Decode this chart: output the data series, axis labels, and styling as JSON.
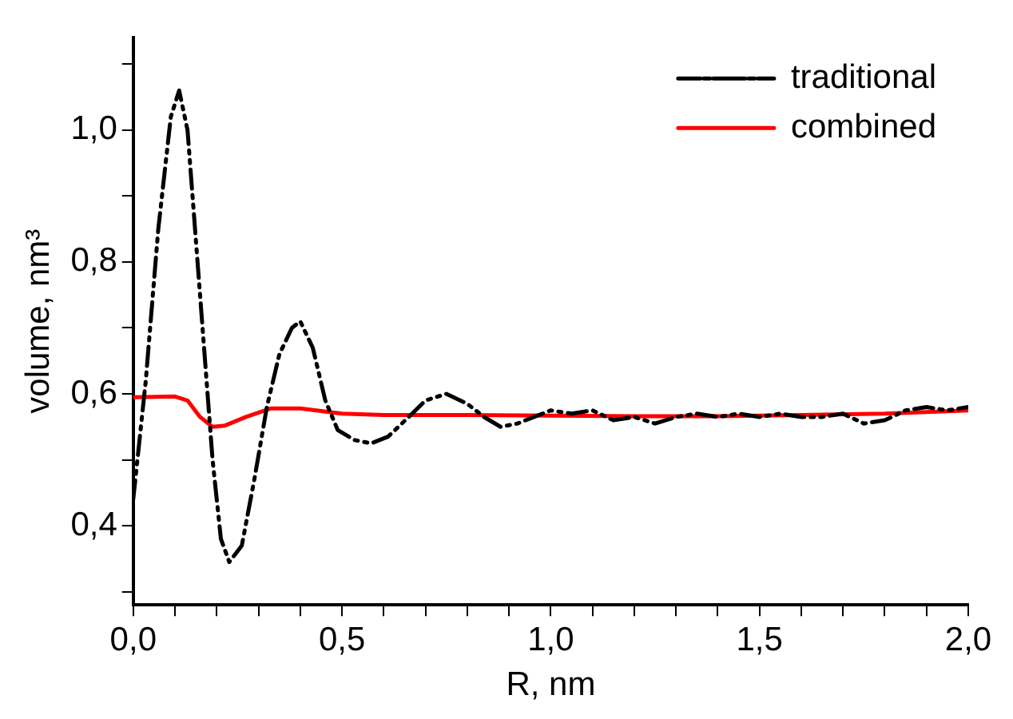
{
  "chart_data": {
    "type": "line",
    "xlabel": "R, nm",
    "ylabel": "volume, nm³",
    "xlim": [
      0,
      2.0
    ],
    "ylim": [
      0.28,
      1.14
    ],
    "xticks": [
      {
        "value": 0,
        "label": "0,0"
      },
      {
        "value": 0.1,
        "label": null
      },
      {
        "value": 0.2,
        "label": null
      },
      {
        "value": 0.3,
        "label": null
      },
      {
        "value": 0.4,
        "label": null
      },
      {
        "value": 0.5,
        "label": "0,5"
      },
      {
        "value": 0.6,
        "label": null
      },
      {
        "value": 0.7,
        "label": null
      },
      {
        "value": 0.8,
        "label": null
      },
      {
        "value": 0.9,
        "label": null
      },
      {
        "value": 1.0,
        "label": "1,0"
      },
      {
        "value": 1.1,
        "label": null
      },
      {
        "value": 1.2,
        "label": null
      },
      {
        "value": 1.3,
        "label": null
      },
      {
        "value": 1.4,
        "label": null
      },
      {
        "value": 1.5,
        "label": "1,5"
      },
      {
        "value": 1.6,
        "label": null
      },
      {
        "value": 1.7,
        "label": null
      },
      {
        "value": 1.8,
        "label": null
      },
      {
        "value": 1.9,
        "label": null
      },
      {
        "value": 2.0,
        "label": "2,0"
      }
    ],
    "yticks": [
      {
        "value": 0.3,
        "label": null
      },
      {
        "value": 0.4,
        "label": "0,4"
      },
      {
        "value": 0.5,
        "label": null
      },
      {
        "value": 0.6,
        "label": "0,6"
      },
      {
        "value": 0.7,
        "label": null
      },
      {
        "value": 0.8,
        "label": "0,8"
      },
      {
        "value": 0.9,
        "label": null
      },
      {
        "value": 1.0,
        "label": "1,0"
      },
      {
        "value": 1.1,
        "label": null
      }
    ],
    "grid": false,
    "legend": "top right",
    "marker": "none",
    "series": [
      {
        "name": "traditional",
        "color": "#000000",
        "line_style": "dashed",
        "x": [
          0,
          0.03,
          0.06,
          0.09,
          0.11,
          0.13,
          0.16,
          0.19,
          0.21,
          0.23,
          0.26,
          0.29,
          0.32,
          0.35,
          0.38,
          0.4,
          0.43,
          0.46,
          0.49,
          0.53,
          0.57,
          0.61,
          0.66,
          0.7,
          0.75,
          0.8,
          0.84,
          0.88,
          0.92,
          0.96,
          1.0,
          1.05,
          1.1,
          1.15,
          1.2,
          1.25,
          1.3,
          1.35,
          1.4,
          1.45,
          1.5,
          1.55,
          1.6,
          1.65,
          1.7,
          1.75,
          1.8,
          1.85,
          1.9,
          1.95,
          2.0
        ],
        "values": [
          0.44,
          0.62,
          0.85,
          1.02,
          1.06,
          1.0,
          0.75,
          0.5,
          0.38,
          0.345,
          0.37,
          0.47,
          0.58,
          0.66,
          0.7,
          0.71,
          0.67,
          0.59,
          0.545,
          0.53,
          0.525,
          0.535,
          0.565,
          0.59,
          0.6,
          0.585,
          0.565,
          0.55,
          0.555,
          0.565,
          0.575,
          0.57,
          0.575,
          0.56,
          0.565,
          0.555,
          0.565,
          0.57,
          0.565,
          0.57,
          0.565,
          0.57,
          0.565,
          0.565,
          0.57,
          0.555,
          0.56,
          0.575,
          0.58,
          0.575,
          0.58
        ]
      },
      {
        "name": "combined",
        "color": "#ff0000",
        "line_style": "solid",
        "x": [
          0,
          0.1,
          0.13,
          0.16,
          0.19,
          0.22,
          0.27,
          0.33,
          0.4,
          0.5,
          0.6,
          0.8,
          1.0,
          1.2,
          1.4,
          1.6,
          1.8,
          2.0
        ],
        "values": [
          0.595,
          0.596,
          0.59,
          0.565,
          0.55,
          0.552,
          0.565,
          0.578,
          0.578,
          0.57,
          0.568,
          0.568,
          0.567,
          0.566,
          0.566,
          0.568,
          0.57,
          0.575
        ]
      }
    ]
  }
}
